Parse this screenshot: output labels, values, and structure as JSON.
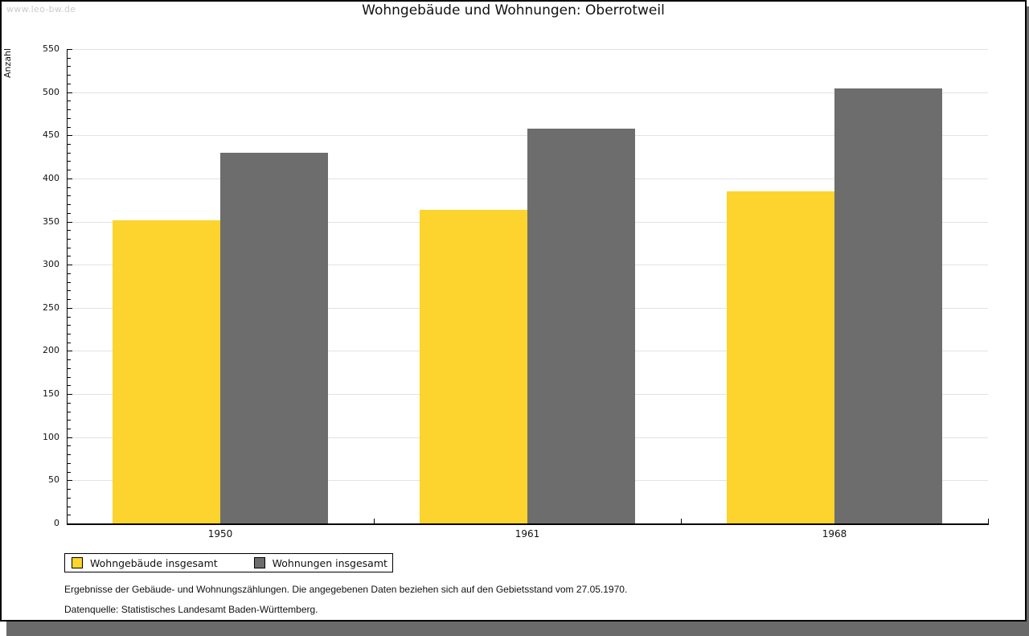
{
  "watermark": "www.leo-bw.de",
  "title": "Wohngebäude und Wohnungen: Oberrotweil",
  "chart_data": {
    "type": "bar",
    "title": "Wohngebäude und Wohnungen: Oberrotweil",
    "categories": [
      "1950",
      "1961",
      "1968"
    ],
    "series": [
      {
        "name": "Wohngebäude insgesamt",
        "color": "#fcd42d",
        "values": [
          351,
          364,
          385
        ]
      },
      {
        "name": "Wohnungen insgesamt",
        "color": "#6d6d6d",
        "values": [
          430,
          458,
          504
        ]
      }
    ],
    "xlabel": "",
    "ylabel": "Anzahl",
    "ylim": [
      0,
      550
    ],
    "y_major_step": 50,
    "y_minor_step": 10,
    "grid": true,
    "legend_position": "bottom-left"
  },
  "footnotes": [
    "Ergebnisse der Gebäude- und Wohnungszählungen. Die angegebenen Daten beziehen sich auf den Gebietsstand vom 27.05.1970.",
    "Datenquelle: Statistisches Landesamt Baden-Württemberg."
  ]
}
